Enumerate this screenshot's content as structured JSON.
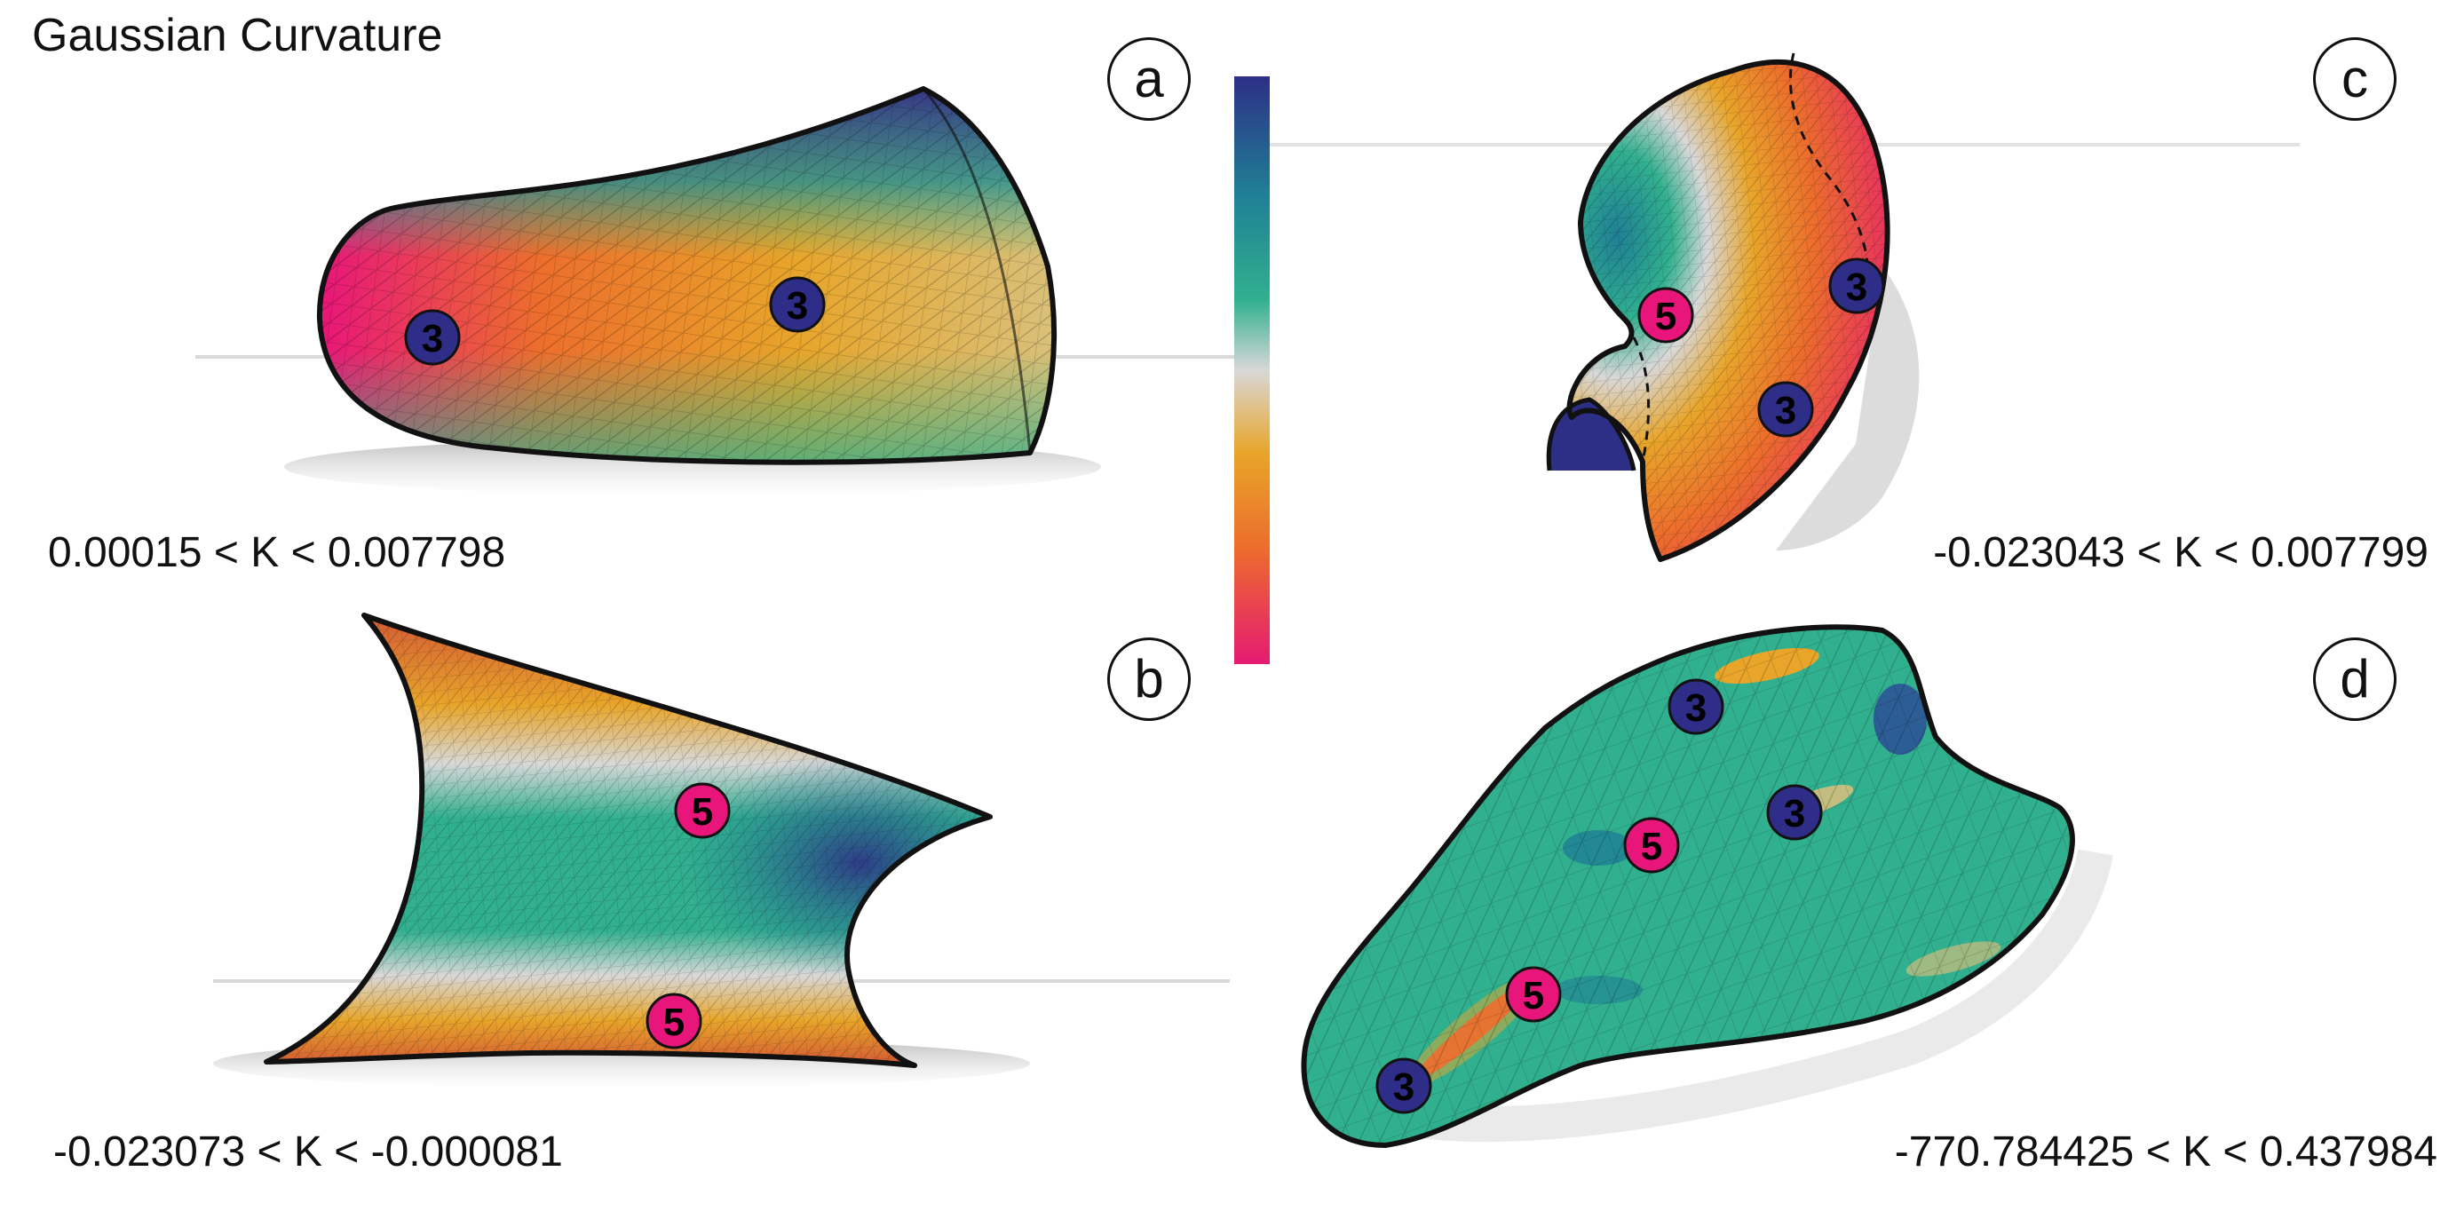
{
  "figure": {
    "title": "Gaussian Curvature",
    "colorbar": {
      "stops": [
        "#2d2f86",
        "#1f7f95",
        "#31b08f",
        "#d8d8d8",
        "#e8a52a",
        "#ec6e2c",
        "#e61a72"
      ]
    },
    "panels": [
      {
        "id": "a",
        "label": "a",
        "range": "0.00015 < K < 0.007798",
        "vertices": [
          "3",
          "3"
        ]
      },
      {
        "id": "b",
        "label": "b",
        "range": "-0.023073 < K < -0.000081",
        "vertices": [
          "5",
          "5"
        ]
      },
      {
        "id": "c",
        "label": "c",
        "range": "-0.023043 < K < 0.007799",
        "vertices": [
          "5",
          "3",
          "3"
        ]
      },
      {
        "id": "d",
        "label": "d",
        "range": "-770.784425 < K < 0.437984",
        "vertices": [
          "3",
          "3",
          "5",
          "5",
          "3"
        ]
      }
    ],
    "colors": {
      "valence3": "#2e2d87",
      "valence5": "#e8157a",
      "outline": "#111111"
    }
  }
}
